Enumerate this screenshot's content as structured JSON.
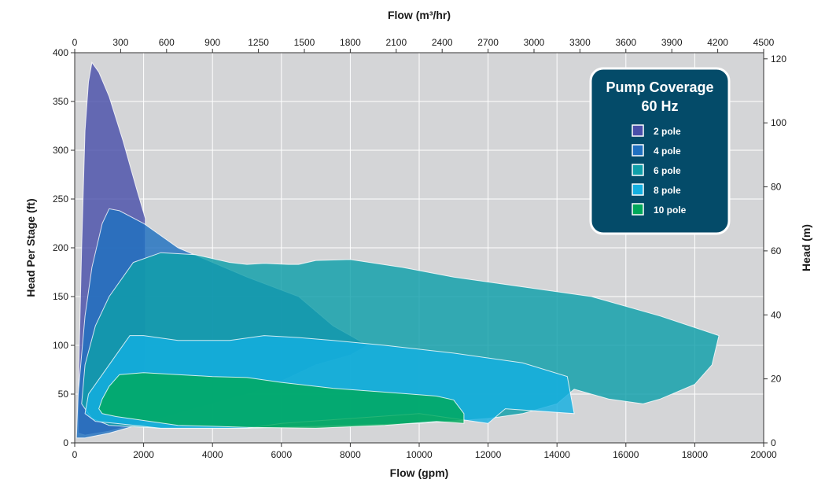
{
  "chart_data": {
    "type": "area",
    "title": "",
    "legend_title": [
      "Pump Coverage",
      "60 Hz"
    ],
    "legend_placement": "top-right",
    "grid": true,
    "background": "#d4d5d7",
    "xlabel_bottom": "Flow (gpm)",
    "xlabel_top": "Flow (m³/hr)",
    "ylabel_left": "Head Per Stage (ft)",
    "ylabel_right": "Head (m)",
    "xlim": [
      0,
      20000
    ],
    "ylim": [
      0,
      400
    ],
    "x_ticks": [
      0,
      2000,
      4000,
      6000,
      8000,
      10000,
      12000,
      14000,
      16000,
      18000,
      20000
    ],
    "y_ticks": [
      0,
      50,
      100,
      150,
      200,
      250,
      300,
      350,
      400
    ],
    "x_top_ticks": [
      "0",
      "300",
      "600",
      "900",
      "1250",
      "1500",
      "1800",
      "2100",
      "2400",
      "2700",
      "3000",
      "3300",
      "3600",
      "3900",
      "4200",
      "4500"
    ],
    "y_right_ticks": [
      0,
      20,
      40,
      60,
      80,
      100,
      120
    ],
    "series": [
      {
        "name": "2 pole",
        "color": "#4a4faa",
        "points": [
          [
            100,
            10
          ],
          [
            120,
            80
          ],
          [
            200,
            200
          ],
          [
            300,
            320
          ],
          [
            400,
            370
          ],
          [
            500,
            390
          ],
          [
            700,
            380
          ],
          [
            1000,
            355
          ],
          [
            1400,
            310
          ],
          [
            1800,
            260
          ],
          [
            2050,
            230
          ],
          [
            2050,
            100
          ],
          [
            2000,
            40
          ],
          [
            1800,
            20
          ],
          [
            1000,
            12
          ],
          [
            300,
            8
          ]
        ]
      },
      {
        "name": "4 pole",
        "color": "#2070c0",
        "points": [
          [
            50,
            5
          ],
          [
            100,
            50
          ],
          [
            300,
            130
          ],
          [
            500,
            180
          ],
          [
            800,
            225
          ],
          [
            1000,
            240
          ],
          [
            1300,
            238
          ],
          [
            2000,
            225
          ],
          [
            3000,
            200
          ],
          [
            4000,
            185
          ],
          [
            5000,
            170
          ],
          [
            6500,
            150
          ],
          [
            7500,
            120
          ],
          [
            8500,
            100
          ],
          [
            8000,
            90
          ],
          [
            7000,
            80
          ],
          [
            5500,
            55
          ],
          [
            4000,
            40
          ],
          [
            3000,
            30
          ],
          [
            2000,
            20
          ],
          [
            1000,
            10
          ],
          [
            300,
            5
          ]
        ]
      },
      {
        "name": "6 pole",
        "color": "#0f9fa9",
        "points": [
          [
            200,
            40
          ],
          [
            300,
            80
          ],
          [
            600,
            120
          ],
          [
            1000,
            150
          ],
          [
            1700,
            185
          ],
          [
            2500,
            195
          ],
          [
            3500,
            193
          ],
          [
            4500,
            185
          ],
          [
            5000,
            183
          ],
          [
            5500,
            184
          ],
          [
            6200,
            183
          ],
          [
            6500,
            183
          ],
          [
            7000,
            187
          ],
          [
            8000,
            188
          ],
          [
            9500,
            180
          ],
          [
            11000,
            170
          ],
          [
            13000,
            160
          ],
          [
            15000,
            150
          ],
          [
            17000,
            130
          ],
          [
            18700,
            110
          ],
          [
            18500,
            80
          ],
          [
            18000,
            60
          ],
          [
            17000,
            45
          ],
          [
            16500,
            40
          ],
          [
            15500,
            45
          ],
          [
            14500,
            55
          ],
          [
            14000,
            40
          ],
          [
            13000,
            30
          ],
          [
            12000,
            25
          ],
          [
            10000,
            20
          ],
          [
            8000,
            18
          ],
          [
            5000,
            15
          ],
          [
            2500,
            15
          ],
          [
            1000,
            18
          ],
          [
            500,
            25
          ],
          [
            300,
            35
          ]
        ]
      },
      {
        "name": "8 pole",
        "color": "#13afe0",
        "points": [
          [
            300,
            30
          ],
          [
            400,
            50
          ],
          [
            800,
            70
          ],
          [
            1300,
            95
          ],
          [
            1600,
            110
          ],
          [
            2000,
            110
          ],
          [
            3000,
            105
          ],
          [
            4500,
            105
          ],
          [
            5500,
            110
          ],
          [
            6500,
            108
          ],
          [
            7500,
            105
          ],
          [
            9000,
            100
          ],
          [
            11000,
            92
          ],
          [
            13000,
            82
          ],
          [
            14300,
            68
          ],
          [
            14500,
            30
          ],
          [
            12500,
            35
          ],
          [
            12000,
            20
          ],
          [
            10000,
            30
          ],
          [
            8000,
            25
          ],
          [
            6000,
            20
          ],
          [
            5000,
            15
          ],
          [
            4000,
            15
          ],
          [
            2500,
            15
          ],
          [
            1200,
            20
          ],
          [
            600,
            22
          ]
        ]
      },
      {
        "name": "10 pole",
        "color": "#00a85a",
        "points": [
          [
            700,
            35
          ],
          [
            800,
            45
          ],
          [
            1000,
            58
          ],
          [
            1300,
            70
          ],
          [
            2000,
            72
          ],
          [
            3000,
            70
          ],
          [
            4000,
            68
          ],
          [
            5000,
            67
          ],
          [
            6000,
            62
          ],
          [
            7500,
            56
          ],
          [
            9000,
            52
          ],
          [
            10500,
            48
          ],
          [
            11000,
            44
          ],
          [
            11300,
            30
          ],
          [
            11300,
            20
          ],
          [
            10500,
            22
          ],
          [
            9000,
            18
          ],
          [
            7000,
            15
          ],
          [
            5000,
            16
          ],
          [
            4000,
            17
          ],
          [
            3000,
            18
          ],
          [
            2000,
            23
          ],
          [
            1200,
            27
          ],
          [
            800,
            30
          ]
        ]
      }
    ]
  }
}
